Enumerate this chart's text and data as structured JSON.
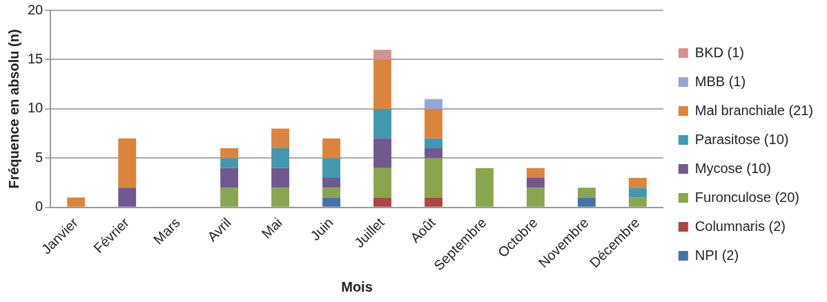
{
  "chart_data": {
    "type": "bar",
    "stacked": true,
    "xlabel": "Mois",
    "ylabel": "Fréquence en absolu (n)",
    "categories": [
      "Janvier",
      "Février",
      "Mars",
      "Avril",
      "Mai",
      "Juin",
      "Juillet",
      "Août",
      "Septembre",
      "Octobre",
      "Novembre",
      "Décembre"
    ],
    "series": [
      {
        "name": "NPI (2)",
        "color": "#4572a7",
        "values": [
          0,
          0,
          0,
          0,
          0,
          1,
          0,
          0,
          0,
          0,
          1,
          0
        ]
      },
      {
        "name": "Columnaris (2)",
        "color": "#aa4643",
        "values": [
          0,
          0,
          0,
          0,
          0,
          0,
          1,
          1,
          0,
          0,
          0,
          0
        ]
      },
      {
        "name": "Furonculose (20)",
        "color": "#89a54e",
        "values": [
          0,
          0,
          0,
          2,
          2,
          1,
          3,
          4,
          4,
          2,
          1,
          1
        ]
      },
      {
        "name": "Mycose (10)",
        "color": "#71588f",
        "values": [
          0,
          2,
          0,
          2,
          2,
          1,
          3,
          1,
          0,
          1,
          0,
          0
        ]
      },
      {
        "name": "Parasitose (10)",
        "color": "#4198af",
        "values": [
          0,
          0,
          0,
          1,
          2,
          2,
          3,
          1,
          0,
          0,
          0,
          1
        ]
      },
      {
        "name": "Mal branchiale (21)",
        "color": "#db843d",
        "values": [
          1,
          5,
          0,
          1,
          2,
          2,
          5,
          3,
          0,
          1,
          0,
          1
        ]
      },
      {
        "name": "MBB (1)",
        "color": "#93a9cf",
        "values": [
          0,
          0,
          0,
          0,
          0,
          0,
          0,
          1,
          0,
          0,
          0,
          0
        ]
      },
      {
        "name": "BKD (1)",
        "color": "#d19392",
        "values": [
          0,
          0,
          0,
          0,
          0,
          0,
          1,
          0,
          0,
          0,
          0,
          0
        ]
      }
    ],
    "ylim": [
      0,
      20
    ],
    "yticks": [
      0,
      5,
      10,
      15,
      20
    ],
    "grid": "y",
    "legend": "right"
  }
}
